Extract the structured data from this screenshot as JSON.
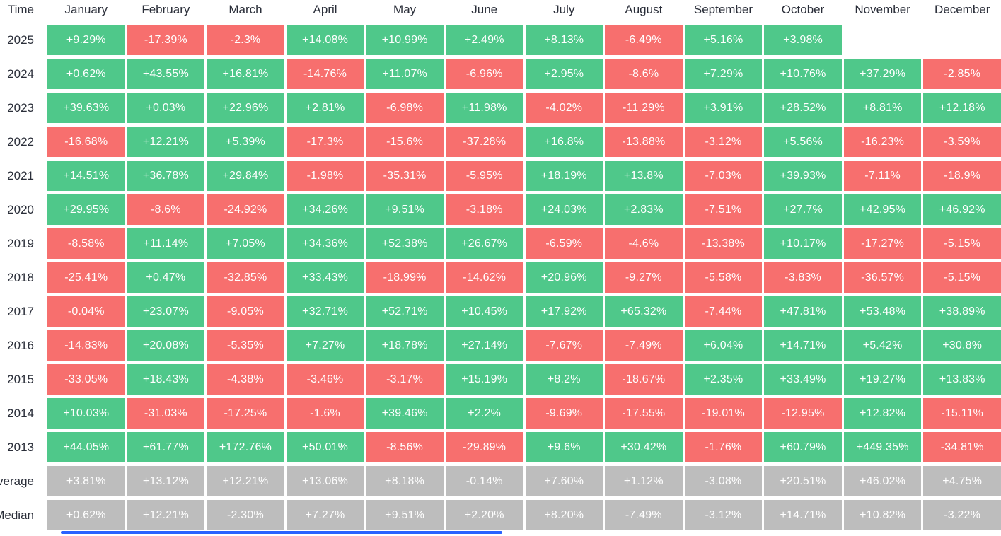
{
  "table": {
    "corner_label": "Time",
    "months": [
      "January",
      "February",
      "March",
      "April",
      "May",
      "June",
      "July",
      "August",
      "September",
      "October",
      "November",
      "December"
    ],
    "rows": [
      {
        "label": "2025",
        "type": "year",
        "values": [
          "+9.29%",
          "-17.39%",
          "-2.3%",
          "+14.08%",
          "+10.99%",
          "+2.49%",
          "+8.13%",
          "-6.49%",
          "+5.16%",
          "+3.98%",
          "",
          ""
        ]
      },
      {
        "label": "2024",
        "type": "year",
        "values": [
          "+0.62%",
          "+43.55%",
          "+16.81%",
          "-14.76%",
          "+11.07%",
          "-6.96%",
          "+2.95%",
          "-8.6%",
          "+7.29%",
          "+10.76%",
          "+37.29%",
          "-2.85%"
        ]
      },
      {
        "label": "2023",
        "type": "year",
        "values": [
          "+39.63%",
          "+0.03%",
          "+22.96%",
          "+2.81%",
          "-6.98%",
          "+11.98%",
          "-4.02%",
          "-11.29%",
          "+3.91%",
          "+28.52%",
          "+8.81%",
          "+12.18%"
        ]
      },
      {
        "label": "2022",
        "type": "year",
        "values": [
          "-16.68%",
          "+12.21%",
          "+5.39%",
          "-17.3%",
          "-15.6%",
          "-37.28%",
          "+16.8%",
          "-13.88%",
          "-3.12%",
          "+5.56%",
          "-16.23%",
          "-3.59%"
        ]
      },
      {
        "label": "2021",
        "type": "year",
        "values": [
          "+14.51%",
          "+36.78%",
          "+29.84%",
          "-1.98%",
          "-35.31%",
          "-5.95%",
          "+18.19%",
          "+13.8%",
          "-7.03%",
          "+39.93%",
          "-7.11%",
          "-18.9%"
        ]
      },
      {
        "label": "2020",
        "type": "year",
        "values": [
          "+29.95%",
          "-8.6%",
          "-24.92%",
          "+34.26%",
          "+9.51%",
          "-3.18%",
          "+24.03%",
          "+2.83%",
          "-7.51%",
          "+27.7%",
          "+42.95%",
          "+46.92%"
        ]
      },
      {
        "label": "2019",
        "type": "year",
        "values": [
          "-8.58%",
          "+11.14%",
          "+7.05%",
          "+34.36%",
          "+52.38%",
          "+26.67%",
          "-6.59%",
          "-4.6%",
          "-13.38%",
          "+10.17%",
          "-17.27%",
          "-5.15%"
        ]
      },
      {
        "label": "2018",
        "type": "year",
        "values": [
          "-25.41%",
          "+0.47%",
          "-32.85%",
          "+33.43%",
          "-18.99%",
          "-14.62%",
          "+20.96%",
          "-9.27%",
          "-5.58%",
          "-3.83%",
          "-36.57%",
          "-5.15%"
        ]
      },
      {
        "label": "2017",
        "type": "year",
        "values": [
          "-0.04%",
          "+23.07%",
          "-9.05%",
          "+32.71%",
          "+52.71%",
          "+10.45%",
          "+17.92%",
          "+65.32%",
          "-7.44%",
          "+47.81%",
          "+53.48%",
          "+38.89%"
        ]
      },
      {
        "label": "2016",
        "type": "year",
        "values": [
          "-14.83%",
          "+20.08%",
          "-5.35%",
          "+7.27%",
          "+18.78%",
          "+27.14%",
          "-7.67%",
          "-7.49%",
          "+6.04%",
          "+14.71%",
          "+5.42%",
          "+30.8%"
        ]
      },
      {
        "label": "2015",
        "type": "year",
        "values": [
          "-33.05%",
          "+18.43%",
          "-4.38%",
          "-3.46%",
          "-3.17%",
          "+15.19%",
          "+8.2%",
          "-18.67%",
          "+2.35%",
          "+33.49%",
          "+19.27%",
          "+13.83%"
        ]
      },
      {
        "label": "2014",
        "type": "year",
        "values": [
          "+10.03%",
          "-31.03%",
          "-17.25%",
          "-1.6%",
          "+39.46%",
          "+2.2%",
          "-9.69%",
          "-17.55%",
          "-19.01%",
          "-12.95%",
          "+12.82%",
          "-15.11%"
        ]
      },
      {
        "label": "2013",
        "type": "year",
        "values": [
          "+44.05%",
          "+61.77%",
          "+172.76%",
          "+50.01%",
          "-8.56%",
          "-29.89%",
          "+9.6%",
          "+30.42%",
          "-1.76%",
          "+60.79%",
          "+449.35%",
          "-34.81%"
        ]
      },
      {
        "label": "Average",
        "type": "summary",
        "values": [
          "+3.81%",
          "+13.12%",
          "+12.21%",
          "+13.06%",
          "+8.18%",
          "-0.14%",
          "+7.60%",
          "+1.12%",
          "-3.08%",
          "+20.51%",
          "+46.02%",
          "+4.75%"
        ]
      },
      {
        "label": "Median",
        "type": "summary",
        "values": [
          "+0.62%",
          "+12.21%",
          "-2.30%",
          "+7.27%",
          "+9.51%",
          "+2.20%",
          "+8.20%",
          "-7.49%",
          "-3.12%",
          "+14.71%",
          "+10.82%",
          "-3.22%"
        ]
      }
    ]
  },
  "colors": {
    "positive": "#4fc88a",
    "negative": "#f76f6e",
    "summary": "#bdbdbd",
    "label_text": "#2a2e39",
    "cell_text": "#ffffff",
    "scrollbar": "#2962ff"
  },
  "chart_data": {
    "type": "heatmap",
    "title": "",
    "xlabel": "Time",
    "categories": [
      "January",
      "February",
      "March",
      "April",
      "May",
      "June",
      "July",
      "August",
      "September",
      "October",
      "November",
      "December"
    ],
    "unit": "percent",
    "legend_position": "none",
    "grid": false,
    "series": [
      {
        "name": "2025",
        "values": [
          9.29,
          -17.39,
          -2.3,
          14.08,
          10.99,
          2.49,
          8.13,
          -6.49,
          5.16,
          3.98,
          null,
          null
        ]
      },
      {
        "name": "2024",
        "values": [
          0.62,
          43.55,
          16.81,
          -14.76,
          11.07,
          -6.96,
          2.95,
          -8.6,
          7.29,
          10.76,
          37.29,
          -2.85
        ]
      },
      {
        "name": "2023",
        "values": [
          39.63,
          0.03,
          22.96,
          2.81,
          -6.98,
          11.98,
          -4.02,
          -11.29,
          3.91,
          28.52,
          8.81,
          12.18
        ]
      },
      {
        "name": "2022",
        "values": [
          -16.68,
          12.21,
          5.39,
          -17.3,
          -15.6,
          -37.28,
          16.8,
          -13.88,
          -3.12,
          5.56,
          -16.23,
          -3.59
        ]
      },
      {
        "name": "2021",
        "values": [
          14.51,
          36.78,
          29.84,
          -1.98,
          -35.31,
          -5.95,
          18.19,
          13.8,
          -7.03,
          39.93,
          -7.11,
          -18.9
        ]
      },
      {
        "name": "2020",
        "values": [
          29.95,
          -8.6,
          -24.92,
          34.26,
          9.51,
          -3.18,
          24.03,
          2.83,
          -7.51,
          27.7,
          42.95,
          46.92
        ]
      },
      {
        "name": "2019",
        "values": [
          -8.58,
          11.14,
          7.05,
          34.36,
          52.38,
          26.67,
          -6.59,
          -4.6,
          -13.38,
          10.17,
          -17.27,
          -5.15
        ]
      },
      {
        "name": "2018",
        "values": [
          -25.41,
          0.47,
          -32.85,
          33.43,
          -18.99,
          -14.62,
          20.96,
          -9.27,
          -5.58,
          -3.83,
          -36.57,
          -5.15
        ]
      },
      {
        "name": "2017",
        "values": [
          -0.04,
          23.07,
          -9.05,
          32.71,
          52.71,
          10.45,
          17.92,
          65.32,
          -7.44,
          47.81,
          53.48,
          38.89
        ]
      },
      {
        "name": "2016",
        "values": [
          -14.83,
          20.08,
          -5.35,
          7.27,
          18.78,
          27.14,
          -7.67,
          -7.49,
          6.04,
          14.71,
          5.42,
          30.8
        ]
      },
      {
        "name": "2015",
        "values": [
          -33.05,
          18.43,
          -4.38,
          -3.46,
          -3.17,
          15.19,
          8.2,
          -18.67,
          2.35,
          33.49,
          19.27,
          13.83
        ]
      },
      {
        "name": "2014",
        "values": [
          10.03,
          -31.03,
          -17.25,
          -1.6,
          39.46,
          2.2,
          -9.69,
          -17.55,
          -19.01,
          -12.95,
          12.82,
          -15.11
        ]
      },
      {
        "name": "2013",
        "values": [
          44.05,
          61.77,
          172.76,
          50.01,
          -8.56,
          -29.89,
          9.6,
          30.42,
          -1.76,
          60.79,
          449.35,
          -34.81
        ]
      },
      {
        "name": "Average",
        "values": [
          3.81,
          13.12,
          12.21,
          13.06,
          8.18,
          -0.14,
          7.6,
          1.12,
          -3.08,
          20.51,
          46.02,
          4.75
        ]
      },
      {
        "name": "Median",
        "values": [
          0.62,
          12.21,
          -2.3,
          7.27,
          9.51,
          2.2,
          8.2,
          -7.49,
          -3.12,
          14.71,
          10.82,
          -3.22
        ]
      }
    ]
  }
}
